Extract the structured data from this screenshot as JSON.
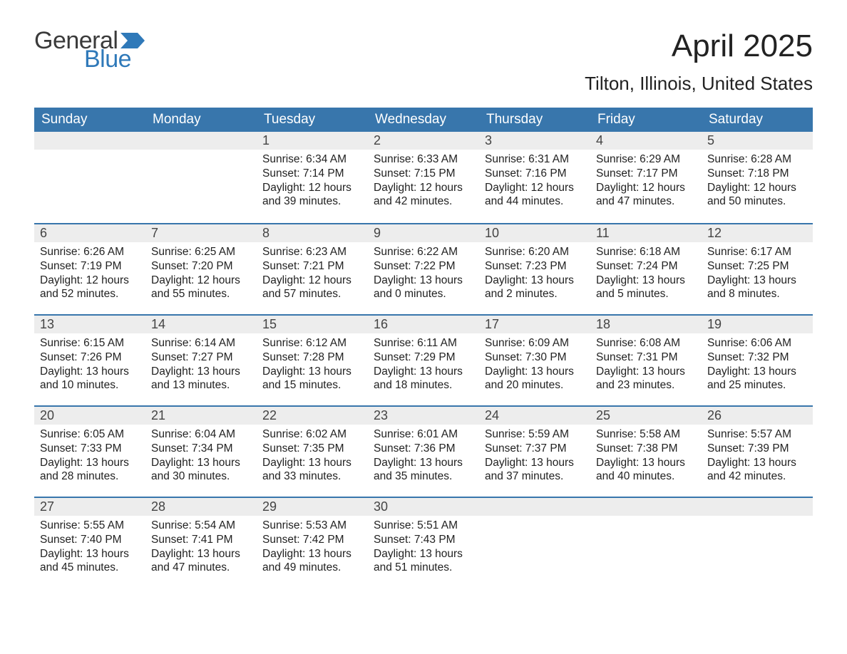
{
  "brand": {
    "word1": "General",
    "word2": "Blue",
    "text_color": "#3a3a3a",
    "accent_color": "#2f79b9"
  },
  "title": "April 2025",
  "location": "Tilton, Illinois, United States",
  "colors": {
    "header_bg": "#3876ac",
    "header_text": "#ffffff",
    "band_bg": "#ededed",
    "band_border": "#3876ac",
    "body_text": "#222222",
    "page_bg": "#ffffff"
  },
  "typography": {
    "title_fontsize": 44,
    "location_fontsize": 26,
    "weekday_fontsize": 19,
    "daynum_fontsize": 18,
    "body_fontsize": 15.5,
    "font_family": "Arial"
  },
  "weekdays": [
    "Sunday",
    "Monday",
    "Tuesday",
    "Wednesday",
    "Thursday",
    "Friday",
    "Saturday"
  ],
  "labels": {
    "sunrise": "Sunrise:",
    "sunset": "Sunset:",
    "daylight": "Daylight:"
  },
  "weeks": [
    [
      null,
      null,
      {
        "n": "1",
        "sunrise": "6:34 AM",
        "sunset": "7:14 PM",
        "daylight": "12 hours and 39 minutes."
      },
      {
        "n": "2",
        "sunrise": "6:33 AM",
        "sunset": "7:15 PM",
        "daylight": "12 hours and 42 minutes."
      },
      {
        "n": "3",
        "sunrise": "6:31 AM",
        "sunset": "7:16 PM",
        "daylight": "12 hours and 44 minutes."
      },
      {
        "n": "4",
        "sunrise": "6:29 AM",
        "sunset": "7:17 PM",
        "daylight": "12 hours and 47 minutes."
      },
      {
        "n": "5",
        "sunrise": "6:28 AM",
        "sunset": "7:18 PM",
        "daylight": "12 hours and 50 minutes."
      }
    ],
    [
      {
        "n": "6",
        "sunrise": "6:26 AM",
        "sunset": "7:19 PM",
        "daylight": "12 hours and 52 minutes."
      },
      {
        "n": "7",
        "sunrise": "6:25 AM",
        "sunset": "7:20 PM",
        "daylight": "12 hours and 55 minutes."
      },
      {
        "n": "8",
        "sunrise": "6:23 AM",
        "sunset": "7:21 PM",
        "daylight": "12 hours and 57 minutes."
      },
      {
        "n": "9",
        "sunrise": "6:22 AM",
        "sunset": "7:22 PM",
        "daylight": "13 hours and 0 minutes."
      },
      {
        "n": "10",
        "sunrise": "6:20 AM",
        "sunset": "7:23 PM",
        "daylight": "13 hours and 2 minutes."
      },
      {
        "n": "11",
        "sunrise": "6:18 AM",
        "sunset": "7:24 PM",
        "daylight": "13 hours and 5 minutes."
      },
      {
        "n": "12",
        "sunrise": "6:17 AM",
        "sunset": "7:25 PM",
        "daylight": "13 hours and 8 minutes."
      }
    ],
    [
      {
        "n": "13",
        "sunrise": "6:15 AM",
        "sunset": "7:26 PM",
        "daylight": "13 hours and 10 minutes."
      },
      {
        "n": "14",
        "sunrise": "6:14 AM",
        "sunset": "7:27 PM",
        "daylight": "13 hours and 13 minutes."
      },
      {
        "n": "15",
        "sunrise": "6:12 AM",
        "sunset": "7:28 PM",
        "daylight": "13 hours and 15 minutes."
      },
      {
        "n": "16",
        "sunrise": "6:11 AM",
        "sunset": "7:29 PM",
        "daylight": "13 hours and 18 minutes."
      },
      {
        "n": "17",
        "sunrise": "6:09 AM",
        "sunset": "7:30 PM",
        "daylight": "13 hours and 20 minutes."
      },
      {
        "n": "18",
        "sunrise": "6:08 AM",
        "sunset": "7:31 PM",
        "daylight": "13 hours and 23 minutes."
      },
      {
        "n": "19",
        "sunrise": "6:06 AM",
        "sunset": "7:32 PM",
        "daylight": "13 hours and 25 minutes."
      }
    ],
    [
      {
        "n": "20",
        "sunrise": "6:05 AM",
        "sunset": "7:33 PM",
        "daylight": "13 hours and 28 minutes."
      },
      {
        "n": "21",
        "sunrise": "6:04 AM",
        "sunset": "7:34 PM",
        "daylight": "13 hours and 30 minutes."
      },
      {
        "n": "22",
        "sunrise": "6:02 AM",
        "sunset": "7:35 PM",
        "daylight": "13 hours and 33 minutes."
      },
      {
        "n": "23",
        "sunrise": "6:01 AM",
        "sunset": "7:36 PM",
        "daylight": "13 hours and 35 minutes."
      },
      {
        "n": "24",
        "sunrise": "5:59 AM",
        "sunset": "7:37 PM",
        "daylight": "13 hours and 37 minutes."
      },
      {
        "n": "25",
        "sunrise": "5:58 AM",
        "sunset": "7:38 PM",
        "daylight": "13 hours and 40 minutes."
      },
      {
        "n": "26",
        "sunrise": "5:57 AM",
        "sunset": "7:39 PM",
        "daylight": "13 hours and 42 minutes."
      }
    ],
    [
      {
        "n": "27",
        "sunrise": "5:55 AM",
        "sunset": "7:40 PM",
        "daylight": "13 hours and 45 minutes."
      },
      {
        "n": "28",
        "sunrise": "5:54 AM",
        "sunset": "7:41 PM",
        "daylight": "13 hours and 47 minutes."
      },
      {
        "n": "29",
        "sunrise": "5:53 AM",
        "sunset": "7:42 PM",
        "daylight": "13 hours and 49 minutes."
      },
      {
        "n": "30",
        "sunrise": "5:51 AM",
        "sunset": "7:43 PM",
        "daylight": "13 hours and 51 minutes."
      },
      null,
      null,
      null
    ]
  ]
}
